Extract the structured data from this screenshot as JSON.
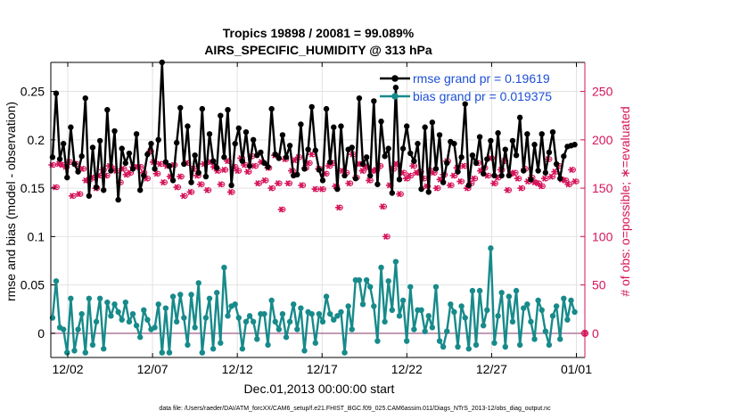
{
  "chart_data": {
    "type": "line",
    "title_line1": "Tropics 19898 / 20081 = 99.089%",
    "title_line2": "AIRS_SPECIFIC_HUMIDITY @ 313 hPa",
    "xlabel": "Dec.01,2013 00:00:00 start",
    "ylabel_left": "rmse and bias (model - observation)",
    "ylabel_right": "# of obs: o=possible; ∗=evaluated",
    "footer": "data file: /Users/raeder/DAI/ATM_forcXX/CAM6_setup/f.e21.FHIST_BGC.f09_025.CAM6assim.011/Diags_NTrS_2013-12/obs_diag_output.nc",
    "x_range": [
      0,
      31.5
    ],
    "y_left_range": [
      -0.025,
      0.28
    ],
    "y_right_range": [
      -25,
      280
    ],
    "x_ticks": [
      {
        "value": 1,
        "label": "12/02"
      },
      {
        "value": 6,
        "label": "12/07"
      },
      {
        "value": 11,
        "label": "12/12"
      },
      {
        "value": 16,
        "label": "12/17"
      },
      {
        "value": 21,
        "label": "12/22"
      },
      {
        "value": 26,
        "label": "12/27"
      },
      {
        "value": 31,
        "label": "01/01"
      }
    ],
    "y_left_ticks": [
      {
        "value": 0,
        "label": "0"
      },
      {
        "value": 0.05,
        "label": "0.05"
      },
      {
        "value": 0.1,
        "label": "0.1"
      },
      {
        "value": 0.15,
        "label": "0.15"
      },
      {
        "value": 0.2,
        "label": "0.2"
      },
      {
        "value": 0.25,
        "label": "0.25"
      }
    ],
    "y_right_ticks": [
      {
        "value": 0,
        "label": "0"
      },
      {
        "value": 50,
        "label": "50"
      },
      {
        "value": 100,
        "label": "100"
      },
      {
        "value": 150,
        "label": "150"
      },
      {
        "value": 200,
        "label": "200"
      },
      {
        "value": 250,
        "label": "250"
      }
    ],
    "series": [
      {
        "name": "rmse grand pr = 0.19619",
        "axis": "left",
        "color": "#000000",
        "values": [
          0.182,
          0.248,
          0.18,
          0.196,
          0.161,
          0.213,
          0.175,
          0.167,
          0.183,
          0.243,
          0.142,
          0.192,
          0.151,
          0.199,
          0.148,
          0.231,
          0.168,
          0.209,
          0.138,
          0.191,
          0.176,
          0.186,
          0.17,
          0.206,
          0.148,
          0.163,
          0.185,
          0.196,
          0.17,
          0.2,
          0.28,
          0.177,
          0.173,
          0.158,
          0.197,
          0.233,
          0.175,
          0.214,
          0.156,
          0.184,
          0.166,
          0.232,
          0.162,
          0.206,
          0.178,
          0.171,
          0.225,
          0.182,
          0.231,
          0.153,
          0.196,
          0.212,
          0.178,
          0.208,
          0.173,
          0.2,
          0.184,
          0.187,
          0.176,
          0.172,
          0.232,
          0.185,
          0.181,
          0.205,
          0.182,
          0.194,
          0.163,
          0.164,
          0.216,
          0.17,
          0.19,
          0.234,
          0.189,
          0.169,
          0.158,
          0.232,
          0.177,
          0.213,
          0.149,
          0.214,
          0.163,
          0.19,
          0.192,
          0.16,
          0.243,
          0.175,
          0.182,
          0.163,
          0.24,
          0.154,
          0.219,
          0.183,
          0.191,
          0.145,
          0.254,
          0.159,
          0.191,
          0.214,
          0.186,
          0.178,
          0.196,
          0.149,
          0.213,
          0.146,
          0.218,
          0.17,
          0.205,
          0.156,
          0.176,
          0.198,
          0.196,
          0.167,
          0.182,
          0.237,
          0.153,
          0.184,
          0.176,
          0.203,
          0.165,
          0.18,
          0.199,
          0.163,
          0.207,
          0.163,
          0.19,
          0.163,
          0.199,
          0.184,
          0.223,
          0.168,
          0.206,
          0.159,
          0.195,
          0.168,
          0.206,
          0.166,
          0.187,
          0.208,
          0.175,
          0.16,
          0.183,
          0.193,
          0.194,
          0.195
        ],
        "count_values": [
          0,
          0.5,
          1,
          1.5,
          2,
          2.5,
          3,
          3.5,
          4,
          4.5,
          5,
          5.5,
          6,
          6.5,
          7,
          7.5,
          8,
          8.5,
          9,
          9.5,
          10,
          10.5,
          11,
          11.5,
          12,
          12.5,
          13,
          13.5,
          14,
          14.5,
          15,
          15.5,
          16,
          16.5,
          17,
          17.5,
          18,
          18.5,
          19,
          19.5,
          20,
          20.5,
          21,
          21.5,
          22,
          22.5,
          23,
          23.5,
          24,
          24.5,
          25,
          25.5,
          26,
          26.5,
          27,
          27.5,
          28,
          28.5,
          29,
          29.5,
          30,
          30.5,
          31,
          31.25,
          0,
          0,
          0,
          0,
          0,
          0,
          0,
          0,
          0,
          0,
          0,
          0,
          0,
          0,
          0,
          0,
          0,
          0,
          0,
          0,
          0,
          0,
          0,
          0,
          0,
          0,
          0,
          0,
          0,
          0,
          0,
          0,
          0,
          0,
          0,
          0,
          0,
          0,
          0,
          0,
          0,
          0,
          0,
          0,
          0,
          0,
          0,
          0,
          0,
          0,
          0,
          0,
          0,
          0,
          0,
          0,
          0,
          0,
          0,
          0,
          0,
          0
        ]
      },
      {
        "name": "bias grand pr = 0.019375",
        "axis": "left",
        "color": "#178a8a",
        "values": [
          0.016,
          0.054,
          0.006,
          0.004,
          -0.02,
          0.036,
          -0.018,
          0.004,
          0.02,
          -0.02,
          0.036,
          -0.012,
          0.012,
          0.036,
          -0.016,
          0.032,
          0.018,
          0.03,
          0.022,
          0.014,
          0.032,
          0.012,
          0.02,
          0.008,
          -0.004,
          0.024,
          0.014,
          0.004,
          0.006,
          0.03,
          -0.02,
          0.026,
          -0.02,
          0.038,
          0.012,
          0.04,
          0.016,
          -0.012,
          0.04,
          0.006,
          0.052,
          -0.02,
          0.016,
          0.036,
          -0.016,
          0.042,
          -0.01,
          0.068,
          0.018,
          0.028,
          0.03,
          0.016,
          -0.016,
          0.012,
          0.018,
          0.012,
          -0.006,
          0.02,
          0.02,
          -0.012,
          0.034,
          0.012,
          0.004,
          0.02,
          -0.004,
          0.012,
          0.03,
          0.004,
          0.026,
          -0.018,
          0.022,
          0.02,
          -0.01,
          0.02,
          0.012,
          0.038,
          0.02,
          0.014,
          0.018,
          0.022,
          -0.02,
          0.028,
          0.004,
          0.055,
          0.055,
          0.03,
          0.055,
          0.048,
          0.028,
          -0.008,
          0.068,
          0.012,
          0.054,
          0.024,
          0.074,
          0.018,
          0.034,
          -0.008,
          0.048,
          0.004,
          0.024,
          0.024,
          0.002,
          0.018,
          0.006,
          0.048,
          -0.008,
          -0.014,
          0.002,
          0.03,
          0.022,
          -0.014,
          0.028,
          0.016,
          -0.016,
          0.044,
          -0.012,
          0.044,
          0.008,
          0.024,
          0.088,
          -0.01,
          0.018,
          0.042,
          -0.014,
          0.038,
          0.012,
          0.044,
          -0.012,
          0.026,
          0.03,
          0.012,
          -0.006,
          0.034,
          0.024,
          0.002,
          -0.012,
          0.018,
          0.028,
          -0.006,
          0.036,
          0.014,
          0.034,
          0.022
        ]
      }
    ],
    "possible_counts": [
      174,
      151,
      175,
      174,
      172,
      177,
      142,
      175,
      144,
      170,
      158,
      159,
      161,
      150,
      163,
      169,
      163,
      173,
      170,
      168,
      156,
      170,
      164,
      166,
      172,
      172,
      172,
      166,
      160,
      188,
      177,
      165,
      175,
      156,
      173,
      162,
      174,
      151,
      162,
      142,
      176,
      146,
      170,
      163,
      154,
      175,
      148,
      177,
      172,
      168,
      154,
      169,
      178,
      146,
      172,
      168,
      181,
      174,
      167,
      183,
      173,
      155,
      177,
      158,
      171,
      150,
      184,
      155,
      128,
      180,
      155,
      168,
      179,
      182,
      153,
      171,
      176,
      185,
      149,
      170,
      149,
      165,
      173,
      176,
      152,
      130,
      168,
      166,
      155,
      185,
      161,
      175,
      168,
      172,
      158,
      168,
      169,
      173,
      131,
      100,
      153,
      170,
      175,
      144,
      166,
      160,
      163,
      173,
      166,
      167,
      160,
      152,
      168,
      166,
      150,
      159,
      164,
      178,
      153,
      163,
      171,
      157,
      173,
      150,
      155,
      160,
      176,
      168,
      171,
      163,
      181,
      155,
      161,
      169,
      178,
      148,
      165,
      166,
      160,
      150,
      170,
      157,
      161,
      156,
      155,
      152,
      160,
      180,
      162,
      167,
      173,
      159,
      158,
      154,
      169,
      157
    ],
    "evaluated_counts": [
      174,
      151,
      175,
      174,
      172,
      177,
      142,
      175,
      144,
      170,
      158,
      159,
      161,
      150,
      163,
      169,
      163,
      173,
      170,
      168,
      156,
      170,
      164,
      166,
      172,
      172,
      172,
      166,
      160,
      188,
      177,
      165,
      175,
      156,
      173,
      162,
      174,
      151,
      162,
      142,
      176,
      146,
      170,
      163,
      154,
      175,
      148,
      177,
      172,
      168,
      154,
      169,
      178,
      146,
      172,
      168,
      181,
      174,
      167,
      183,
      173,
      155,
      177,
      158,
      171,
      150,
      184,
      155,
      128,
      180,
      155,
      168,
      179,
      182,
      153,
      171,
      176,
      185,
      149,
      170,
      149,
      165,
      173,
      176,
      152,
      130,
      168,
      166,
      155,
      185,
      161,
      175,
      168,
      172,
      158,
      168,
      169,
      173,
      131,
      100,
      153,
      170,
      175,
      144,
      166,
      160,
      163,
      173,
      166,
      167,
      160,
      152,
      168,
      166,
      150,
      159,
      164,
      178,
      153,
      163,
      171,
      157,
      173,
      150,
      155,
      160,
      176,
      168,
      171,
      163,
      181,
      155,
      161,
      169,
      178,
      148,
      165,
      166,
      160,
      150,
      170,
      157,
      161,
      156,
      155,
      152,
      160,
      180,
      162,
      167,
      173,
      159,
      158,
      154,
      169,
      157
    ],
    "zero_count_point": {
      "x": 31.5,
      "y": 0
    },
    "legend_position": "top-right",
    "grid": true,
    "colors": {
      "rmse": "#000000",
      "bias": "#178a8a",
      "counts": "#d6135a",
      "zero_line": "#b07a9a",
      "grid": "#e2e2e2",
      "legend_text": "#1c4fd6"
    }
  }
}
